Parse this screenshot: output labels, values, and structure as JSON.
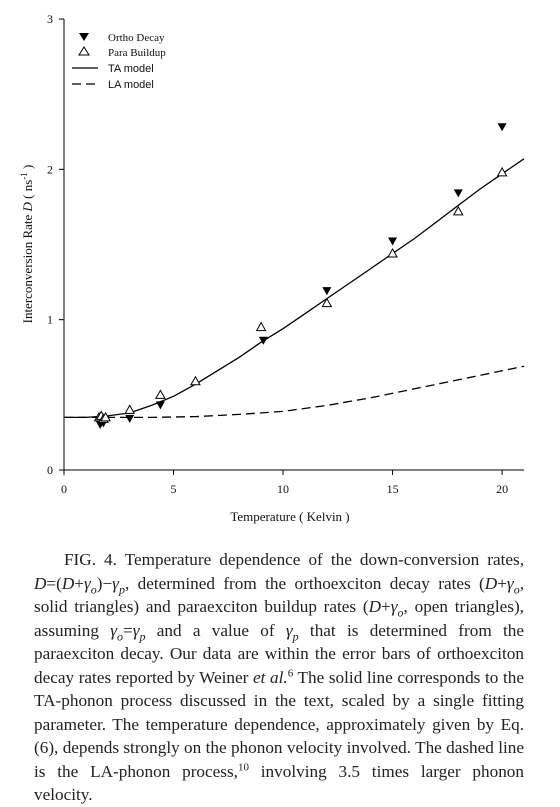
{
  "chart_data": {
    "type": "scatter",
    "xlabel": "Temperature ( Kelvin )",
    "ylabel": "Interconversion Rate D ( ns-1 )",
    "ylabel_parts": {
      "main": "Interconversion Rate ",
      "var": "D",
      "open": " ( ns",
      "sup": "-1",
      "close": " )"
    },
    "xlim": [
      0,
      21
    ],
    "ylim": [
      0,
      3
    ],
    "xticks": [
      0,
      5,
      10,
      15,
      20
    ],
    "yticks": [
      0,
      1,
      2,
      3
    ],
    "grid": false,
    "legend_position": "top-left",
    "series": [
      {
        "name": "Ortho Decay",
        "marker": "filled-down-triangle",
        "x": [
          1.65,
          1.7,
          1.75,
          1.8,
          1.85,
          3.0,
          4.4,
          9.1,
          12.0,
          15.0,
          18.0,
          20.0
        ],
        "y": [
          0.3,
          0.33,
          0.32,
          0.31,
          0.33,
          0.34,
          0.43,
          0.86,
          1.19,
          1.52,
          1.84,
          2.28
        ]
      },
      {
        "name": "Para Buildup",
        "marker": "open-up-triangle",
        "x": [
          1.6,
          1.7,
          1.8,
          1.9,
          3.0,
          4.4,
          6.0,
          9.0,
          12.0,
          15.0,
          18.0,
          20.0
        ],
        "y": [
          0.35,
          0.36,
          0.34,
          0.35,
          0.4,
          0.5,
          0.59,
          0.95,
          1.11,
          1.44,
          1.72,
          1.98
        ]
      },
      {
        "name": "TA model",
        "style": "solid",
        "x": [
          0,
          1,
          2,
          3,
          4,
          5,
          6,
          7,
          8,
          9,
          10,
          11,
          12,
          13,
          14,
          15,
          16,
          17,
          18,
          19,
          20,
          21
        ],
        "y": [
          0.35,
          0.35,
          0.36,
          0.38,
          0.43,
          0.49,
          0.57,
          0.66,
          0.75,
          0.85,
          0.94,
          1.04,
          1.14,
          1.24,
          1.34,
          1.44,
          1.54,
          1.65,
          1.76,
          1.87,
          1.97,
          2.07
        ]
      },
      {
        "name": "LA model",
        "style": "dashed",
        "x": [
          0,
          2,
          4,
          6,
          8,
          10,
          12,
          14,
          16,
          18,
          20,
          21
        ],
        "y": [
          0.35,
          0.35,
          0.35,
          0.355,
          0.37,
          0.39,
          0.43,
          0.48,
          0.54,
          0.6,
          0.66,
          0.69
        ]
      }
    ]
  },
  "caption": {
    "t1": "FIG. 4. Temperature dependence of the down-conversion rates, ",
    "D": "D",
    "t2": "=(",
    "t3": "+",
    "gamma": "γ",
    "o": "o",
    "p": "p",
    "t4": ")−",
    "t5": ", determined from the orthoexciton decay rates (",
    "t6": ", solid triangles) and paraexciton buildup rates (",
    "t7": ", open triangles), assuming ",
    "t8": "=",
    "t9": " and a value of ",
    "t10": " that is determined from the paraexciton decay. Our data are within the error bars of orthoexciton decay rates reported by Weiner ",
    "etal": "et al.",
    "ref6": "6",
    "t11": " The solid line corresponds to the TA-phonon process discussed in the text, scaled by a single fitting parameter. The temperature dependence, approximately given by Eq. (6), depends strongly on the phonon velocity involved. The dashed line is the LA-phonon process,",
    "ref10": "10",
    "t12": " involving 3.5 times larger phonon velocity."
  }
}
